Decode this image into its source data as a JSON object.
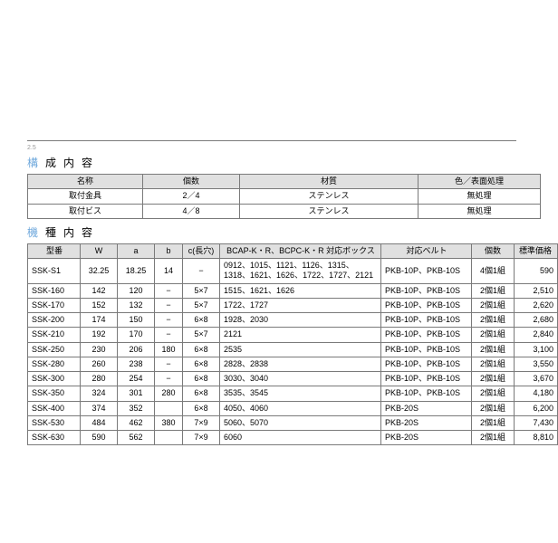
{
  "mark": "2.5",
  "section1": {
    "title_first": "構",
    "title_rest": "成内容",
    "columns": [
      "名称",
      "個数",
      "材質",
      "色／表面処理"
    ],
    "rows": [
      [
        "取付金具",
        "2／4",
        "ステンレス",
        "無処理"
      ],
      [
        "取付ビス",
        "4／8",
        "ステンレス",
        "無処理"
      ]
    ]
  },
  "section2": {
    "title_first": "機",
    "title_rest": "種内容",
    "columns": [
      "型番",
      "W",
      "a",
      "b",
      "c(長穴)",
      "BCAP-K・R、BCPC-K・R 対応ボックス",
      "対応ベルト",
      "個数",
      "標準価格"
    ],
    "rows": [
      [
        "SSK-S1",
        "32.25",
        "18.25",
        "14",
        "−",
        "0912、1015、1121、1126、1315、1318、1621、1626、1722、1727、2121",
        "PKB-10P、PKB-10S",
        "4個1組",
        "590"
      ],
      [
        "SSK-160",
        "142",
        "120",
        "−",
        "5×7",
        "1515、1621、1626",
        "PKB-10P、PKB-10S",
        "2個1組",
        "2,510"
      ],
      [
        "SSK-170",
        "152",
        "132",
        "−",
        "5×7",
        "1722、1727",
        "PKB-10P、PKB-10S",
        "2個1組",
        "2,620"
      ],
      [
        "SSK-200",
        "174",
        "150",
        "−",
        "6×8",
        "1928、2030",
        "PKB-10P、PKB-10S",
        "2個1組",
        "2,680"
      ],
      [
        "SSK-210",
        "192",
        "170",
        "−",
        "5×7",
        "2121",
        "PKB-10P、PKB-10S",
        "2個1組",
        "2,840"
      ],
      [
        "SSK-250",
        "230",
        "206",
        "180",
        "6×8",
        "2535",
        "PKB-10P、PKB-10S",
        "2個1組",
        "3,100"
      ],
      [
        "SSK-280",
        "260",
        "238",
        "−",
        "6×8",
        "2828、2838",
        "PKB-10P、PKB-10S",
        "2個1組",
        "3,550"
      ],
      [
        "SSK-300",
        "280",
        "254",
        "−",
        "6×8",
        "3030、3040",
        "PKB-10P、PKB-10S",
        "2個1組",
        "3,670"
      ],
      [
        "SSK-350",
        "324",
        "301",
        "280",
        "6×8",
        "3535、3545",
        "PKB-10P、PKB-10S",
        "2個1組",
        "4,180"
      ],
      [
        "SSK-400",
        "374",
        "352",
        "",
        "6×8",
        "4050、4060",
        "PKB-20S",
        "2個1組",
        "6,200"
      ],
      [
        "SSK-530",
        "484",
        "462",
        "380",
        "7×9",
        "5060、5070",
        "PKB-20S",
        "2個1組",
        "7,430"
      ],
      [
        "SSK-630",
        "590",
        "562",
        "",
        "7×9",
        "6060",
        "PKB-20S",
        "2個1組",
        "8,810"
      ]
    ]
  },
  "t2_col_classes": [
    "c-model",
    "c-w",
    "c-a",
    "c-b",
    "c-c",
    "c-box",
    "c-belt",
    "c-set",
    "c-price"
  ],
  "wrap_cols": [
    5
  ]
}
